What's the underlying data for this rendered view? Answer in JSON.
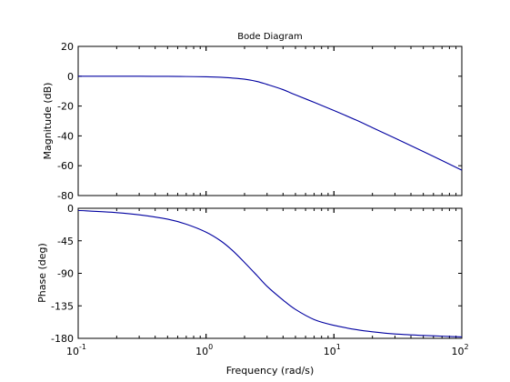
{
  "chart_data": [
    {
      "type": "line",
      "title": "Bode Diagram",
      "ylabel": "Magnitude (dB)",
      "xlabel": "",
      "xscale": "log",
      "xlim": [
        0.1,
        100
      ],
      "ylim": [
        -80,
        20
      ],
      "yticks": [
        "20",
        "0",
        "-20",
        "-40",
        "-60",
        "-80"
      ],
      "grid": false,
      "line_color": "#0000a0",
      "series": [
        {
          "x": [
            0.1,
            0.2,
            0.3,
            0.5,
            0.7,
            1,
            1.3,
            1.6,
            2,
            2.5,
            3,
            4,
            5,
            7,
            10,
            15,
            20,
            30,
            50,
            70,
            100
          ],
          "y": [
            0.0,
            -0.02,
            -0.03,
            -0.1,
            -0.2,
            -0.4,
            -0.7,
            -1.2,
            -2.0,
            -3.5,
            -5.5,
            -9.0,
            -12.5,
            -17.5,
            -23.0,
            -29.5,
            -34.5,
            -41.5,
            -50.5,
            -56.5,
            -63.0
          ]
        }
      ]
    },
    {
      "type": "line",
      "title": "",
      "ylabel": "Phase (deg)",
      "xlabel": "Frequency  (rad/s)",
      "xscale": "log",
      "xlim": [
        0.1,
        100
      ],
      "ylim": [
        -180,
        0
      ],
      "yticks": [
        "0",
        "-45",
        "-90",
        "-135",
        "-180"
      ],
      "xticks": [
        {
          "base": "10",
          "exp": "-1"
        },
        {
          "base": "10",
          "exp": "0"
        },
        {
          "base": "10",
          "exp": "1"
        },
        {
          "base": "10",
          "exp": "2"
        }
      ],
      "grid": false,
      "line_color": "#0000a0",
      "series": [
        {
          "x": [
            0.1,
            0.2,
            0.3,
            0.5,
            0.7,
            1,
            1.3,
            1.6,
            2,
            2.5,
            3,
            4,
            5,
            7,
            10,
            15,
            20,
            30,
            50,
            70,
            100
          ],
          "y": [
            -3,
            -6,
            -9,
            -15,
            -22,
            -33,
            -45,
            -58,
            -75,
            -93,
            -108,
            -127,
            -140,
            -154,
            -162,
            -168,
            -171,
            -174,
            -176,
            -177,
            -178
          ]
        }
      ]
    }
  ]
}
